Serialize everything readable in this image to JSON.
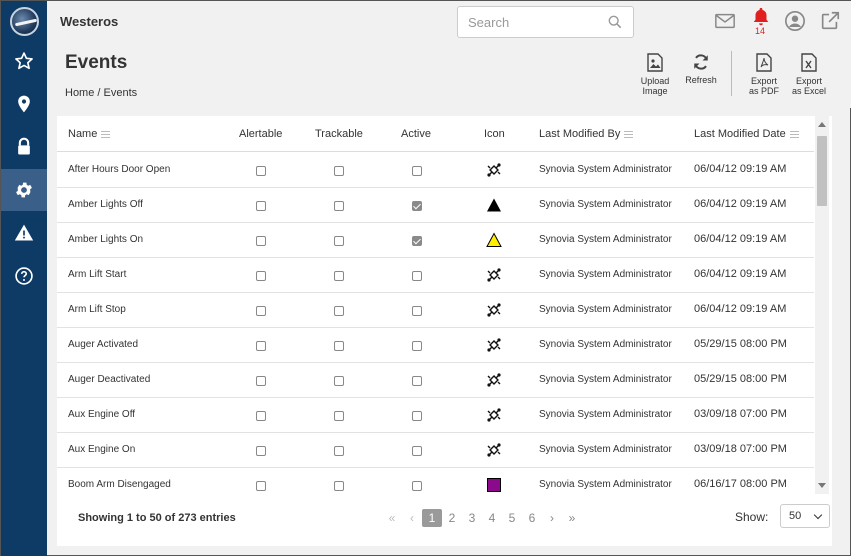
{
  "app": {
    "title": "Westeros"
  },
  "search": {
    "placeholder": "Search"
  },
  "notifications": {
    "count": "14",
    "color": "#e02020"
  },
  "sidebar": {
    "items": [
      {
        "name": "favorites",
        "icon": "star-icon"
      },
      {
        "name": "locations",
        "icon": "map-pin-icon"
      },
      {
        "name": "security",
        "icon": "lock-icon"
      },
      {
        "name": "settings",
        "icon": "gear-icon",
        "active": true
      },
      {
        "name": "alerts",
        "icon": "warning-icon"
      },
      {
        "name": "help",
        "icon": "help-icon"
      }
    ]
  },
  "page": {
    "title": "Events",
    "breadcrumb": "Home / Events"
  },
  "toolbar": {
    "upload_image": [
      "Upload",
      "Image"
    ],
    "refresh": "Refresh",
    "export_pdf": [
      "Export",
      "as PDF"
    ],
    "export_excel": [
      "Export",
      "as Excel"
    ]
  },
  "table": {
    "columns": [
      "Name",
      "Alertable",
      "Trackable",
      "Active",
      "Icon",
      "Last Modified By",
      "Last Modified Date"
    ],
    "rows": [
      {
        "name": "After Hours Door Open",
        "alertable": false,
        "trackable": false,
        "active": false,
        "icon": "satellite-icon",
        "modified_by": "Synovia System Administrator",
        "modified_date": "06/04/12 09:19 AM"
      },
      {
        "name": "Amber Lights Off",
        "alertable": false,
        "trackable": false,
        "active": true,
        "icon": "black-triangle-icon",
        "modified_by": "Synovia System Administrator",
        "modified_date": "06/04/12 09:19 AM"
      },
      {
        "name": "Amber Lights On",
        "alertable": false,
        "trackable": false,
        "active": true,
        "icon": "yellow-triangle-icon",
        "modified_by": "Synovia System Administrator",
        "modified_date": "06/04/12 09:19 AM"
      },
      {
        "name": "Arm Lift Start",
        "alertable": false,
        "trackable": false,
        "active": false,
        "icon": "satellite-icon",
        "modified_by": "Synovia System Administrator",
        "modified_date": "06/04/12 09:19 AM"
      },
      {
        "name": "Arm Lift Stop",
        "alertable": false,
        "trackable": false,
        "active": false,
        "icon": "satellite-icon",
        "modified_by": "Synovia System Administrator",
        "modified_date": "06/04/12 09:19 AM"
      },
      {
        "name": "Auger Activated",
        "alertable": false,
        "trackable": false,
        "active": false,
        "icon": "satellite-icon",
        "modified_by": "Synovia System Administrator",
        "modified_date": "05/29/15 08:00 PM"
      },
      {
        "name": "Auger Deactivated",
        "alertable": false,
        "trackable": false,
        "active": false,
        "icon": "satellite-icon",
        "modified_by": "Synovia System Administrator",
        "modified_date": "05/29/15 08:00 PM"
      },
      {
        "name": "Aux Engine Off",
        "alertable": false,
        "trackable": false,
        "active": false,
        "icon": "satellite-icon",
        "modified_by": "Synovia System Administrator",
        "modified_date": "03/09/18 07:00 PM"
      },
      {
        "name": "Aux Engine On",
        "alertable": false,
        "trackable": false,
        "active": false,
        "icon": "satellite-icon",
        "modified_by": "Synovia System Administrator",
        "modified_date": "03/09/18 07:00 PM"
      },
      {
        "name": "Boom Arm Disengaged",
        "alertable": false,
        "trackable": false,
        "active": false,
        "icon": "purple-square-icon",
        "modified_by": "Synovia System Administrator",
        "modified_date": "06/16/17 08:00 PM"
      }
    ]
  },
  "footer": {
    "info": "Showing 1 to 50 of 273 entries",
    "pages": [
      "1",
      "2",
      "3",
      "4",
      "5",
      "6"
    ],
    "current_page": "1",
    "show_label": "Show:",
    "page_size": "50"
  },
  "colors": {
    "sidebar": "#0e3a66",
    "sidebar_active": "#3a6089",
    "purple_icon": "#8b0a8b",
    "yellow_icon": "#ffee00"
  }
}
